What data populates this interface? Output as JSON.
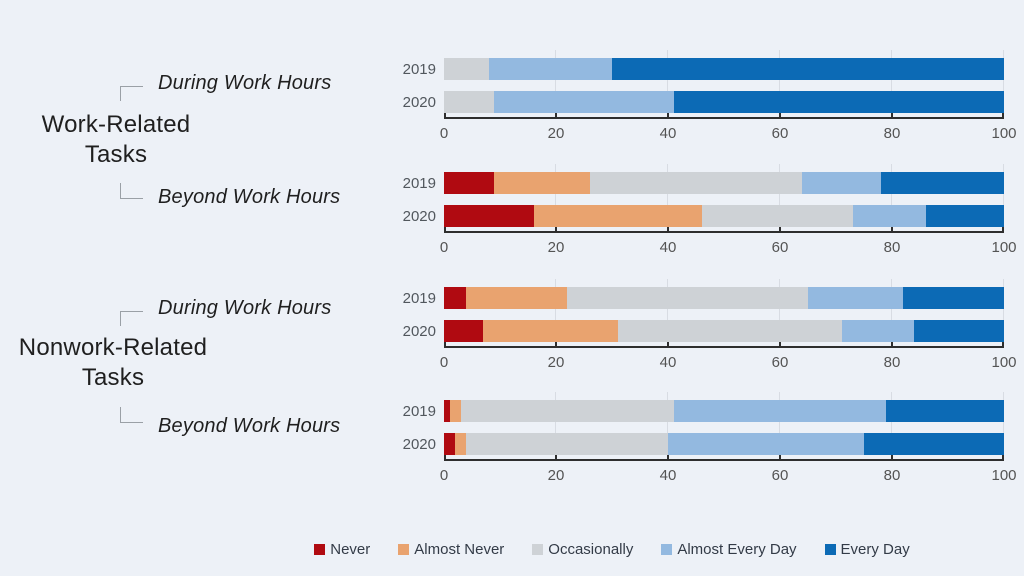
{
  "colors": {
    "background": "#edf1f7",
    "series": [
      "#b00a11",
      "#e9a36f",
      "#ced2d6",
      "#93b9e0",
      "#0c6ab5"
    ],
    "gridline": "#d8dce3",
    "axis_line": "#2e2e2e",
    "tick_text": "#545454",
    "year_text": "#51575d",
    "label_text": "#1f1f1f",
    "legend_text": "#333b47",
    "bracket": "#9aa0a6"
  },
  "left_labels": {
    "groups": [
      {
        "line1": "Work-Related",
        "line2": "Tasks",
        "during": "During Work Hours",
        "beyond": "Beyond Work Hours"
      },
      {
        "line1": "Nonwork-Related",
        "line2": "Tasks",
        "during": "During Work Hours",
        "beyond": "Beyond Work Hours"
      }
    ]
  },
  "axis": {
    "min": 0,
    "max": 100,
    "ticks": [
      0,
      20,
      40,
      60,
      80,
      100
    ]
  },
  "legend": {
    "items": [
      {
        "label": "Never"
      },
      {
        "label": "Almost Never"
      },
      {
        "label": "Occasionally"
      },
      {
        "label": "Almost Every Day"
      },
      {
        "label": "Every Day"
      }
    ]
  },
  "chart_data": [
    {
      "type": "bar",
      "stacked": true,
      "orientation": "horizontal",
      "group": "Work-Related Tasks",
      "subgroup": "During Work Hours",
      "categories": [
        "2019",
        "2020"
      ],
      "series": [
        {
          "name": "Never",
          "values": [
            0,
            0
          ]
        },
        {
          "name": "Almost Never",
          "values": [
            0,
            0
          ]
        },
        {
          "name": "Occasionally",
          "values": [
            8,
            9
          ]
        },
        {
          "name": "Almost Every Day",
          "values": [
            22,
            32
          ]
        },
        {
          "name": "Every Day",
          "values": [
            70,
            59
          ]
        }
      ],
      "xlim": [
        0,
        100
      ],
      "grid": true
    },
    {
      "type": "bar",
      "stacked": true,
      "orientation": "horizontal",
      "group": "Work-Related Tasks",
      "subgroup": "Beyond Work Hours",
      "categories": [
        "2019",
        "2020"
      ],
      "series": [
        {
          "name": "Never",
          "values": [
            9,
            16
          ]
        },
        {
          "name": "Almost Never",
          "values": [
            17,
            30
          ]
        },
        {
          "name": "Occasionally",
          "values": [
            38,
            27
          ]
        },
        {
          "name": "Almost Every Day",
          "values": [
            14,
            13
          ]
        },
        {
          "name": "Every Day",
          "values": [
            22,
            14
          ]
        }
      ],
      "xlim": [
        0,
        100
      ],
      "grid": true
    },
    {
      "type": "bar",
      "stacked": true,
      "orientation": "horizontal",
      "group": "Nonwork-Related Tasks",
      "subgroup": "During Work Hours",
      "categories": [
        "2019",
        "2020"
      ],
      "series": [
        {
          "name": "Never",
          "values": [
            4,
            7
          ]
        },
        {
          "name": "Almost Never",
          "values": [
            18,
            24
          ]
        },
        {
          "name": "Occasionally",
          "values": [
            43,
            40
          ]
        },
        {
          "name": "Almost Every Day",
          "values": [
            17,
            13
          ]
        },
        {
          "name": "Every Day",
          "values": [
            18,
            16
          ]
        }
      ],
      "xlim": [
        0,
        100
      ],
      "grid": true
    },
    {
      "type": "bar",
      "stacked": true,
      "orientation": "horizontal",
      "group": "Nonwork-Related Tasks",
      "subgroup": "Beyond Work Hours",
      "categories": [
        "2019",
        "2020"
      ],
      "series": [
        {
          "name": "Never",
          "values": [
            1,
            2
          ]
        },
        {
          "name": "Almost Never",
          "values": [
            2,
            2
          ]
        },
        {
          "name": "Occasionally",
          "values": [
            38,
            36
          ]
        },
        {
          "name": "Almost Every Day",
          "values": [
            38,
            35
          ]
        },
        {
          "name": "Every Day",
          "values": [
            21,
            25
          ]
        }
      ],
      "xlim": [
        0,
        100
      ],
      "grid": true
    }
  ]
}
